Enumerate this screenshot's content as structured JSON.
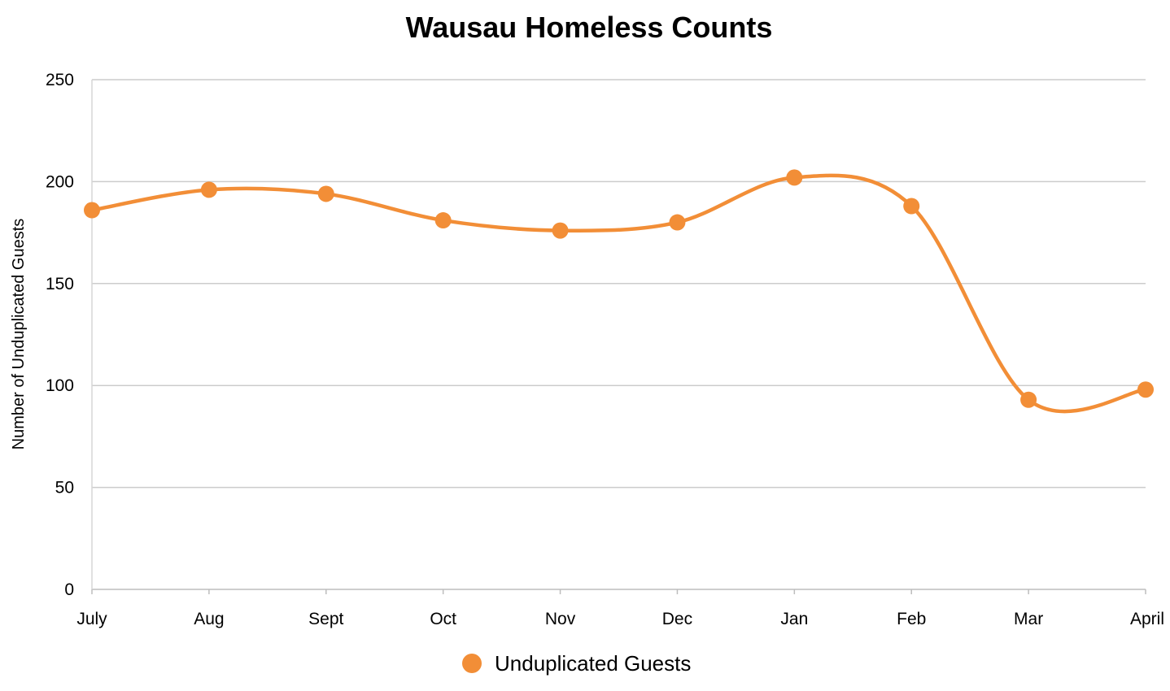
{
  "chart_data": {
    "type": "line",
    "title": "Wausau Homeless Counts",
    "xlabel": "",
    "ylabel": "Number of Unduplicated Guests",
    "categories": [
      "July",
      "Aug",
      "Sept",
      "Oct",
      "Nov",
      "Dec",
      "Jan",
      "Feb",
      "Mar",
      "April"
    ],
    "series": [
      {
        "name": "Unduplicated Guests",
        "color": "#F28E37",
        "values": [
          186,
          196,
          194,
          181,
          176,
          180,
          202,
          188,
          93,
          98
        ]
      }
    ],
    "ylim": [
      0,
      250
    ],
    "yticks": [
      "0",
      "50",
      "100",
      "150",
      "200",
      "250"
    ],
    "grid": true,
    "smooth": true,
    "legend_position": "bottom-center"
  }
}
